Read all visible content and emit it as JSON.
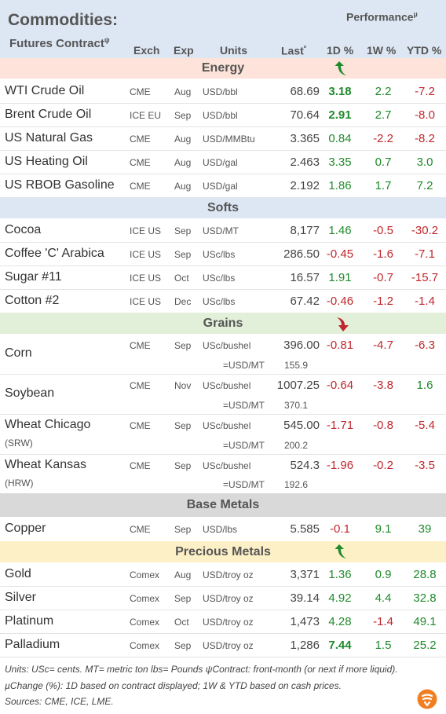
{
  "header": {
    "title": "Commodities:",
    "subtitle": "Futures Contract",
    "subtitle_mark": "ψ",
    "performance": "Performance",
    "performance_mark": "µ",
    "col_exch": "Exch",
    "col_exp": "Exp",
    "col_units": "Units",
    "col_last": "Last",
    "col_last_mark": "º",
    "col_1d": "1D %",
    "col_1w": "1W %",
    "col_ytd": "YTD %"
  },
  "sections": {
    "energy": "Energy",
    "softs": "Softs",
    "grains": "Grains",
    "base": "Base Metals",
    "precious": "Precious Metals"
  },
  "energy": [
    {
      "name": "WTI Crude Oil",
      "exch": "CME",
      "exp": "Aug",
      "units": "USD/bbl",
      "last": "68.69",
      "d1": "3.18",
      "w1": "2.2",
      "ytd": "-7.2"
    },
    {
      "name": "Brent Crude Oil",
      "exch": "ICE EU",
      "exp": "Sep",
      "units": "USD/bbl",
      "last": "70.64",
      "d1": "2.91",
      "w1": "2.7",
      "ytd": "-8.0"
    },
    {
      "name": "US Natural Gas",
      "exch": "CME",
      "exp": "Aug",
      "units": "USD/MMBtu",
      "last": "3.365",
      "d1": "0.84",
      "w1": "-2.2",
      "ytd": "-8.2"
    },
    {
      "name": "US Heating Oil",
      "exch": "CME",
      "exp": "Aug",
      "units": "USD/gal",
      "last": "2.463",
      "d1": "3.35",
      "w1": "0.7",
      "ytd": "3.0"
    },
    {
      "name": "US RBOB Gasoline",
      "exch": "CME",
      "exp": "Aug",
      "units": "USD/gal",
      "last": "2.192",
      "d1": "1.86",
      "w1": "1.7",
      "ytd": "7.2"
    }
  ],
  "softs": [
    {
      "name": "Cocoa",
      "exch": "ICE US",
      "exp": "Sep",
      "units": "USD/MT",
      "last": "8,177",
      "d1": "1.46",
      "w1": "-0.5",
      "ytd": "-30.2"
    },
    {
      "name": "Coffee 'C' Arabica",
      "exch": "ICE US",
      "exp": "Sep",
      "units": "USc/lbs",
      "last": "286.50",
      "d1": "-0.45",
      "w1": "-1.6",
      "ytd": "-7.1"
    },
    {
      "name": "Sugar #11",
      "exch": "ICE US",
      "exp": "Oct",
      "units": "USc/lbs",
      "last": "16.57",
      "d1": "1.91",
      "w1": "-0.7",
      "ytd": "-15.7"
    },
    {
      "name": "Cotton #2",
      "exch": "ICE US",
      "exp": "Dec",
      "units": "USc/lbs",
      "last": "67.42",
      "d1": "-0.46",
      "w1": "-1.2",
      "ytd": "-1.4"
    }
  ],
  "grains": [
    {
      "name": "Corn",
      "sub": "",
      "exch": "CME",
      "exp": "Sep",
      "units": "USc/bushel",
      "last": "396.00",
      "d1": "-0.81",
      "w1": "-4.7",
      "ytd": "-6.3",
      "conv_label": "=USD/MT",
      "conv_value": "155.9"
    },
    {
      "name": "Soybean",
      "sub": "",
      "exch": "CME",
      "exp": "Nov",
      "units": "USc/bushel",
      "last": "1007.25",
      "d1": "-0.64",
      "w1": "-3.8",
      "ytd": "1.6",
      "conv_label": "=USD/MT",
      "conv_value": "370.1"
    },
    {
      "name": "Wheat Chicago",
      "sub": "(SRW)",
      "exch": "CME",
      "exp": "Sep",
      "units": "USc/bushel",
      "last": "545.00",
      "d1": "-1.71",
      "w1": "-0.8",
      "ytd": "-5.4",
      "conv_label": "=USD/MT",
      "conv_value": "200.2"
    },
    {
      "name": "Wheat Kansas",
      "sub": "(HRW)",
      "exch": "CME",
      "exp": "Sep",
      "units": "USc/bushel",
      "last": "524.3",
      "d1": "-1.96",
      "w1": "-0.2",
      "ytd": "-3.5",
      "conv_label": "=USD/MT",
      "conv_value": "192.6"
    }
  ],
  "base": [
    {
      "name": "Copper",
      "exch": "CME",
      "exp": "Sep",
      "units": "USD/lbs",
      "last": "5.585",
      "d1": "-0.1",
      "w1": "9.1",
      "ytd": "39"
    }
  ],
  "precious": [
    {
      "name": "Gold",
      "exch": "Comex",
      "exp": "Aug",
      "units": "USD/troy oz",
      "last": "3,371",
      "d1": "1.36",
      "w1": "0.9",
      "ytd": "28.8"
    },
    {
      "name": "Silver",
      "exch": "Comex",
      "exp": "Sep",
      "units": "USD/troy oz",
      "last": "39.14",
      "d1": "4.92",
      "w1": "4.4",
      "ytd": "32.8"
    },
    {
      "name": "Platinum",
      "exch": "Comex",
      "exp": "Oct",
      "units": "USD/troy oz",
      "last": "1,473",
      "d1": "4.28",
      "w1": "-1.4",
      "ytd": "49.1"
    },
    {
      "name": "Palladium",
      "exch": "Comex",
      "exp": "Sep",
      "units": "USD/troy oz",
      "last": "1,286",
      "d1": "7.44",
      "w1": "1.5",
      "ytd": "25.2"
    }
  ],
  "footer": {
    "line1": "Units: USc= cents.   MT= metric ton   lbs= Pounds  ψContract: front-month (or next if more liquid).",
    "line2": "µChange (%): 1D based on contract displayed; 1W & YTD based on cash prices.",
    "line3": "Sources: CME, ICE, LME."
  },
  "colors": {
    "header_bg": "#dde6f3",
    "energy_bg": "#fde3d9",
    "softs_bg": "#dde6f3",
    "grains_bg": "#e2efd9",
    "base_bg": "#d9d9d9",
    "precious_bg": "#fdf0c6",
    "positive": "#1f8a2b",
    "negative": "#c0272d"
  },
  "icons": {
    "energy_arrow": "up-arrow-icon",
    "grains_arrow": "down-arrow-icon",
    "precious_arrow": "up-arrow-icon",
    "brand_logo": "logo-icon"
  }
}
